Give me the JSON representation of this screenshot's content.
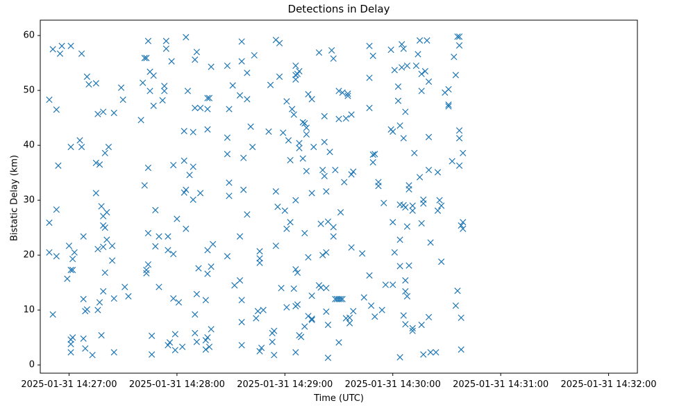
{
  "chart_data": {
    "type": "scatter",
    "title": "Detections in Delay",
    "xlabel": "Time (UTC)",
    "ylabel": "Bistatic Delay (km)",
    "marker": "x",
    "color": "#1f77b4",
    "xlim_seconds": [
      -16,
      316
    ],
    "ylim": [
      -1.5,
      62.8
    ],
    "x_ticks": [
      {
        "s": 0,
        "label": "2025-01-31 14:27:00"
      },
      {
        "s": 60,
        "label": "2025-01-31 14:28:00"
      },
      {
        "s": 120,
        "label": "2025-01-31 14:29:00"
      },
      {
        "s": 180,
        "label": "2025-01-31 14:30:00"
      },
      {
        "s": 240,
        "label": "2025-01-31 14:31:00"
      },
      {
        "s": 300,
        "label": "2025-01-31 14:32:00"
      }
    ],
    "y_ticks": [
      {
        "v": 0,
        "label": "0"
      },
      {
        "v": 10,
        "label": "10"
      },
      {
        "v": 20,
        "label": "20"
      },
      {
        "v": 30,
        "label": "30"
      },
      {
        "v": 40,
        "label": "40"
      },
      {
        "v": 50,
        "label": "50"
      },
      {
        "v": 60,
        "label": "60"
      }
    ],
    "x_unit": "seconds after 2025-01-31 14:27:00 UTC",
    "points": [
      [
        -11,
        48.3
      ],
      [
        -11,
        25.9
      ],
      [
        -11,
        20.5
      ],
      [
        -9,
        57.5
      ],
      [
        -9,
        9.2
      ],
      [
        -7,
        46.5
      ],
      [
        -7,
        28.3
      ],
      [
        -7,
        19.8
      ],
      [
        -6,
        36.3
      ],
      [
        -5,
        56.7
      ],
      [
        -4,
        58.1
      ],
      [
        -1,
        15.7
      ],
      [
        0,
        21.7
      ],
      [
        1,
        2.3
      ],
      [
        1,
        39.7
      ],
      [
        1,
        58.1
      ],
      [
        1,
        17.3
      ],
      [
        1,
        4.6
      ],
      [
        1,
        3.8
      ],
      [
        2,
        19.3
      ],
      [
        2,
        17.3
      ],
      [
        2,
        5.0
      ],
      [
        3,
        20.5
      ],
      [
        6,
        40.9
      ],
      [
        7,
        56.7
      ],
      [
        7,
        39.7
      ],
      [
        8,
        23.4
      ],
      [
        8,
        12.0
      ],
      [
        8,
        4.8
      ],
      [
        9,
        3.0
      ],
      [
        9,
        9.8
      ],
      [
        10,
        10.1
      ],
      [
        10,
        52.5
      ],
      [
        11,
        51.1
      ],
      [
        13,
        1.8
      ],
      [
        15,
        51.3
      ],
      [
        15,
        36.8
      ],
      [
        15,
        31.3
      ],
      [
        16,
        10.0
      ],
      [
        16,
        45.7
      ],
      [
        16,
        21.1
      ],
      [
        17,
        36.5
      ],
      [
        17,
        11.4
      ],
      [
        18,
        28.9
      ],
      [
        18,
        5.4
      ],
      [
        19,
        46.1
      ],
      [
        19,
        13.4
      ],
      [
        19,
        21.5
      ],
      [
        19,
        27.1
      ],
      [
        19,
        25.4
      ],
      [
        20,
        25.0
      ],
      [
        20,
        38.6
      ],
      [
        20,
        16.8
      ],
      [
        21,
        27.8
      ],
      [
        21,
        22.8
      ],
      [
        22,
        39.7
      ],
      [
        24,
        19.0
      ],
      [
        24,
        21.7
      ],
      [
        25,
        45.9
      ],
      [
        25,
        12.1
      ],
      [
        25,
        2.3
      ],
      [
        29,
        50.5
      ],
      [
        30,
        48.3
      ],
      [
        31,
        14.2
      ],
      [
        33,
        12.5
      ],
      [
        40,
        44.6
      ],
      [
        41,
        51.4
      ],
      [
        42,
        55.9
      ],
      [
        42,
        32.7
      ],
      [
        43,
        55.9
      ],
      [
        43,
        16.7
      ],
      [
        43,
        17.3
      ],
      [
        44,
        24.0
      ],
      [
        44,
        18.3
      ],
      [
        44,
        35.9
      ],
      [
        44,
        59.0
      ],
      [
        45,
        53.4
      ],
      [
        45,
        49.9
      ],
      [
        46,
        5.3
      ],
      [
        46,
        1.9
      ],
      [
        47,
        52.7
      ],
      [
        47,
        47.2
      ],
      [
        48,
        28.2
      ],
      [
        48,
        21.6
      ],
      [
        50,
        23.4
      ],
      [
        50,
        14.2
      ],
      [
        52,
        48.2
      ],
      [
        53,
        50.8
      ],
      [
        53,
        49.9
      ],
      [
        54,
        59.0
      ],
      [
        54,
        57.6
      ],
      [
        55,
        23.4
      ],
      [
        55,
        20.9
      ],
      [
        55,
        3.6
      ],
      [
        56,
        4.1
      ],
      [
        57,
        55.3
      ],
      [
        58,
        36.4
      ],
      [
        58,
        20.2
      ],
      [
        58,
        12.1
      ],
      [
        59,
        5.6
      ],
      [
        59,
        2.7
      ],
      [
        60,
        26.6
      ],
      [
        61,
        11.4
      ],
      [
        63,
        3.3
      ],
      [
        64,
        42.6
      ],
      [
        64,
        37.2
      ],
      [
        64,
        31.4
      ],
      [
        65,
        31.9
      ],
      [
        65,
        24.8
      ],
      [
        65,
        59.7
      ],
      [
        66,
        49.9
      ],
      [
        67,
        34.6
      ],
      [
        69,
        42.4
      ],
      [
        69,
        36.1
      ],
      [
        69,
        30.1
      ],
      [
        70,
        55.6
      ],
      [
        70,
        46.8
      ],
      [
        70,
        9.2
      ],
      [
        70,
        5.8
      ],
      [
        71,
        57.0
      ],
      [
        71,
        4.2
      ],
      [
        71,
        12.9
      ],
      [
        72,
        17.6
      ],
      [
        73,
        46.8
      ],
      [
        73,
        31.3
      ],
      [
        76,
        11.8
      ],
      [
        76,
        2.8
      ],
      [
        76,
        4.5
      ],
      [
        77,
        48.6
      ],
      [
        77,
        42.9
      ],
      [
        77,
        46.6
      ],
      [
        77,
        16.6
      ],
      [
        77,
        5.0
      ],
      [
        77,
        20.9
      ],
      [
        78,
        48.6
      ],
      [
        78,
        3.3
      ],
      [
        79,
        54.3
      ],
      [
        79,
        6.5
      ],
      [
        79,
        17.9
      ],
      [
        80,
        22.0
      ],
      [
        88,
        54.5
      ],
      [
        88,
        41.4
      ],
      [
        88,
        38.4
      ],
      [
        88,
        19.8
      ],
      [
        89,
        46.6
      ],
      [
        89,
        30.8
      ],
      [
        89,
        33.2
      ],
      [
        91,
        50.9
      ],
      [
        92,
        14.5
      ],
      [
        95,
        15.4
      ],
      [
        95,
        23.4
      ],
      [
        95,
        49.1
      ],
      [
        96,
        58.9
      ],
      [
        96,
        55.3
      ],
      [
        96,
        7.8
      ],
      [
        96,
        11.8
      ],
      [
        96,
        3.6
      ],
      [
        97,
        37.7
      ],
      [
        97,
        31.9
      ],
      [
        99,
        53.2
      ],
      [
        99,
        48.4
      ],
      [
        99,
        27.4
      ],
      [
        101,
        43.4
      ],
      [
        102,
        39.7
      ],
      [
        103,
        56.4
      ],
      [
        104,
        8.5
      ],
      [
        105,
        9.8
      ],
      [
        106,
        2.5
      ],
      [
        106,
        18.6
      ],
      [
        106,
        20.7
      ],
      [
        106,
        19.4
      ],
      [
        107,
        3.1
      ],
      [
        108,
        10.0
      ],
      [
        111,
        42.5
      ],
      [
        112,
        51.0
      ],
      [
        113,
        4.2
      ],
      [
        113,
        5.8
      ],
      [
        114,
        6.2
      ],
      [
        114,
        1.8
      ],
      [
        115,
        21.7
      ],
      [
        115,
        31.6
      ],
      [
        115,
        59.2
      ],
      [
        116,
        28.8
      ],
      [
        117,
        58.6
      ],
      [
        117,
        52.5
      ],
      [
        118,
        14.0
      ],
      [
        119,
        42.3
      ],
      [
        120,
        28.1
      ],
      [
        121,
        48.0
      ],
      [
        121,
        10.5
      ],
      [
        121,
        24.8
      ],
      [
        122,
        40.9
      ],
      [
        123,
        37.3
      ],
      [
        123,
        26.0
      ],
      [
        124,
        46.6
      ],
      [
        125,
        13.9
      ],
      [
        125,
        45.6
      ],
      [
        126,
        2.3
      ],
      [
        126,
        10.7
      ],
      [
        126,
        17.4
      ],
      [
        126,
        30.0
      ],
      [
        126,
        52.8
      ],
      [
        126,
        52.0
      ],
      [
        126,
        54.5
      ],
      [
        127,
        11.0
      ],
      [
        127,
        16.8
      ],
      [
        127,
        53.0
      ],
      [
        128,
        5.4
      ],
      [
        128,
        53.5
      ],
      [
        128,
        40.4
      ],
      [
        128,
        39.5
      ],
      [
        129,
        5.1
      ],
      [
        130,
        37.6
      ],
      [
        130,
        44.2
      ],
      [
        131,
        24.0
      ],
      [
        131,
        44.0
      ],
      [
        131,
        7.0
      ],
      [
        132,
        43.2
      ],
      [
        132,
        42.0
      ],
      [
        132,
        35.3
      ],
      [
        133,
        8.9
      ],
      [
        133,
        49.3
      ],
      [
        133,
        19.6
      ],
      [
        135,
        8.4
      ],
      [
        135,
        31.3
      ],
      [
        135,
        12.6
      ],
      [
        135,
        8.2
      ],
      [
        135,
        48.4
      ],
      [
        136,
        39.7
      ],
      [
        139,
        14.5
      ],
      [
        139,
        56.9
      ],
      [
        140,
        14.1
      ],
      [
        140,
        25.7
      ],
      [
        141,
        35.5
      ],
      [
        141,
        20.0
      ],
      [
        142,
        40.6
      ],
      [
        142,
        34.4
      ],
      [
        142,
        45.3
      ],
      [
        143,
        31.6
      ],
      [
        143,
        14.0
      ],
      [
        143,
        20.5
      ],
      [
        143,
        9.7
      ],
      [
        144,
        26.1
      ],
      [
        144,
        1.3
      ],
      [
        144,
        7.3
      ],
      [
        145,
        38.8
      ],
      [
        146,
        57.3
      ],
      [
        147,
        23.4
      ],
      [
        147,
        55.8
      ],
      [
        147,
        25.1
      ],
      [
        148,
        12.0
      ],
      [
        148,
        35.5
      ],
      [
        149,
        12.0
      ],
      [
        150,
        49.9
      ],
      [
        150,
        12.0
      ],
      [
        150,
        4.1
      ],
      [
        150,
        44.8
      ],
      [
        151,
        12.0
      ],
      [
        151,
        27.8
      ],
      [
        152,
        12.0
      ],
      [
        152,
        49.6
      ],
      [
        153,
        33.3
      ],
      [
        154,
        44.9
      ],
      [
        154,
        8.5
      ],
      [
        155,
        49.4
      ],
      [
        155,
        49.0
      ],
      [
        156,
        7.6
      ],
      [
        156,
        8.6
      ],
      [
        157,
        34.7
      ],
      [
        157,
        21.4
      ],
      [
        157,
        45.6
      ],
      [
        158,
        35.2
      ],
      [
        158,
        9.8
      ],
      [
        163,
        20.3
      ],
      [
        164,
        12.3
      ],
      [
        167,
        52.3
      ],
      [
        167,
        46.8
      ],
      [
        167,
        16.3
      ],
      [
        167,
        58.1
      ],
      [
        168,
        10.8
      ],
      [
        169,
        38.3
      ],
      [
        169,
        36.9
      ],
      [
        169,
        56.3
      ],
      [
        170,
        38.4
      ],
      [
        170,
        8.8
      ],
      [
        172,
        33.3
      ],
      [
        172,
        32.6
      ],
      [
        174,
        10.0
      ],
      [
        175,
        29.5
      ],
      [
        176,
        14.6
      ],
      [
        179,
        57.4
      ],
      [
        179,
        42.9
      ],
      [
        180,
        42.5
      ],
      [
        180,
        26.0
      ],
      [
        180,
        14.6
      ],
      [
        181,
        20.5
      ],
      [
        181,
        53.7
      ],
      [
        183,
        50.7
      ],
      [
        183,
        48.1
      ],
      [
        184,
        22.8
      ],
      [
        184,
        43.6
      ],
      [
        184,
        18.0
      ],
      [
        184,
        1.4
      ],
      [
        184,
        29.2
      ],
      [
        185,
        58.4
      ],
      [
        185,
        54.2
      ],
      [
        186,
        57.6
      ],
      [
        186,
        41.3
      ],
      [
        186,
        29.1
      ],
      [
        186,
        9.0
      ],
      [
        187,
        46.1
      ],
      [
        187,
        15.4
      ],
      [
        187,
        28.7
      ],
      [
        187,
        13.4
      ],
      [
        187,
        7.4
      ],
      [
        188,
        25.2
      ],
      [
        188,
        12.5
      ],
      [
        188,
        54.5
      ],
      [
        189,
        18.1
      ],
      [
        189,
        32.0
      ],
      [
        189,
        32.7
      ],
      [
        191,
        28.1
      ],
      [
        191,
        29.0
      ],
      [
        191,
        6.7
      ],
      [
        191,
        6.2
      ],
      [
        192,
        38.6
      ],
      [
        193,
        54.5
      ],
      [
        194,
        56.6
      ],
      [
        195,
        34.2
      ],
      [
        195,
        59.1
      ],
      [
        196,
        53.0
      ],
      [
        196,
        7.3
      ],
      [
        196,
        25.8
      ],
      [
        196,
        49.9
      ],
      [
        197,
        29.4
      ],
      [
        197,
        1.9
      ],
      [
        197,
        30.1
      ],
      [
        198,
        53.5
      ],
      [
        199,
        59.1
      ],
      [
        200,
        51.6
      ],
      [
        200,
        41.5
      ],
      [
        200,
        8.7
      ],
      [
        200,
        35.5
      ],
      [
        201,
        22.3
      ],
      [
        201,
        2.3
      ],
      [
        204,
        2.3
      ],
      [
        205,
        35.1
      ],
      [
        205,
        28.1
      ],
      [
        206,
        30.0
      ],
      [
        207,
        18.8
      ],
      [
        207,
        29.0
      ],
      [
        209,
        49.6
      ],
      [
        211,
        47.4
      ],
      [
        211,
        50.2
      ],
      [
        211,
        47.1
      ],
      [
        213,
        37.1
      ],
      [
        214,
        56.1
      ],
      [
        215,
        52.8
      ],
      [
        215,
        10.8
      ],
      [
        216,
        13.5
      ],
      [
        216,
        59.8
      ],
      [
        217,
        59.8
      ],
      [
        217,
        58.2
      ],
      [
        217,
        42.7
      ],
      [
        217,
        41.3
      ],
      [
        217,
        36.3
      ],
      [
        218,
        25.4
      ],
      [
        218,
        2.8
      ],
      [
        218,
        8.6
      ],
      [
        219,
        38.6
      ],
      [
        219,
        26.0
      ],
      [
        219,
        24.8
      ]
    ]
  }
}
